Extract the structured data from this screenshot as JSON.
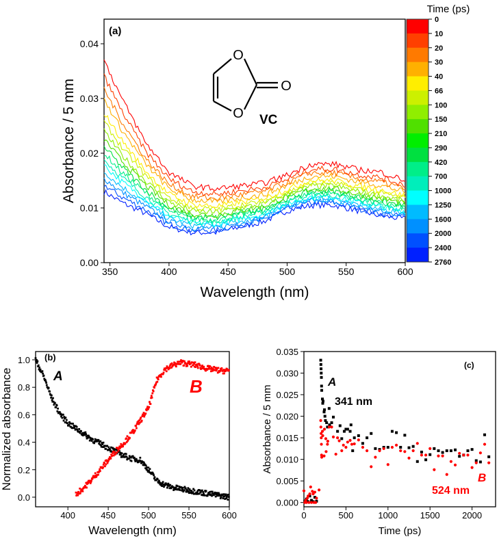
{
  "chart_data": [
    {
      "panel": "a",
      "type": "line",
      "label": "(a)",
      "xlabel": "Wavelength (nm)",
      "ylabel": "Absorbance / 5 mm",
      "xlim": [
        345,
        600
      ],
      "ylim": [
        0,
        0.0445
      ],
      "xticks": [
        350,
        400,
        450,
        500,
        550,
        600
      ],
      "yticks": [
        0.0,
        0.01,
        0.02,
        0.03,
        0.04
      ],
      "ytick_labels": [
        "0.00",
        "0.01",
        "0.02",
        "0.03",
        "0.04"
      ],
      "molecule": {
        "name": "VC",
        "atoms": [
          "O",
          "O",
          "O"
        ]
      },
      "colorbar": {
        "title": "Time (ps)",
        "labels": [
          "0",
          "10",
          "20",
          "30",
          "40",
          "66",
          "100",
          "150",
          "210",
          "290",
          "420",
          "700",
          "1000",
          "1250",
          "1600",
          "2000",
          "2400",
          "2760"
        ],
        "colors": [
          "#ff0000",
          "#ff4000",
          "#ff7a00",
          "#ffb000",
          "#ffee00",
          "#ccf000",
          "#90ee00",
          "#50e000",
          "#00ee00",
          "#00e040",
          "#00ee88",
          "#00eebb",
          "#00ffff",
          "#00bbff",
          "#0090ff",
          "#0050ff",
          "#0020ff"
        ]
      },
      "x": [
        345,
        360,
        380,
        400,
        420,
        440,
        460,
        480,
        500,
        520,
        540,
        560,
        580,
        600
      ],
      "series": [
        {
          "name": "0 ps",
          "values": [
            0.037,
            0.03,
            0.022,
            0.0165,
            0.014,
            0.0135,
            0.014,
            0.0145,
            0.016,
            0.018,
            0.018,
            0.017,
            0.0165,
            0.015
          ]
        },
        {
          "name": "10 ps",
          "values": [
            0.0341,
            0.0277,
            0.0204,
            0.0153,
            0.013,
            0.0125,
            0.0131,
            0.0137,
            0.0152,
            0.0171,
            0.0171,
            0.0161,
            0.0155,
            0.0142
          ]
        },
        {
          "name": "20 ps",
          "values": [
            0.0317,
            0.0258,
            0.0191,
            0.0143,
            0.0121,
            0.0117,
            0.0124,
            0.013,
            0.0146,
            0.0164,
            0.0164,
            0.0154,
            0.0147,
            0.0135
          ]
        },
        {
          "name": "30 ps",
          "values": [
            0.0298,
            0.0243,
            0.0181,
            0.0135,
            0.0115,
            0.0111,
            0.0118,
            0.0124,
            0.0141,
            0.0158,
            0.0158,
            0.0148,
            0.0141,
            0.0129
          ]
        },
        {
          "name": "40 ps",
          "values": [
            0.0274,
            0.0224,
            0.0168,
            0.0125,
            0.0106,
            0.0103,
            0.011,
            0.0117,
            0.0134,
            0.015,
            0.015,
            0.014,
            0.0133,
            0.0122
          ]
        },
        {
          "name": "66 ps",
          "values": [
            0.0257,
            0.0211,
            0.0159,
            0.0118,
            0.01,
            0.0097,
            0.0105,
            0.0112,
            0.0129,
            0.0145,
            0.0145,
            0.0135,
            0.0127,
            0.0117
          ]
        },
        {
          "name": "100 ps",
          "values": [
            0.024,
            0.0197,
            0.015,
            0.0111,
            0.0094,
            0.0092,
            0.01,
            0.0107,
            0.0125,
            0.014,
            0.014,
            0.013,
            0.0122,
            0.0112
          ]
        },
        {
          "name": "150 ps",
          "values": [
            0.0226,
            0.0186,
            0.0142,
            0.0105,
            0.0089,
            0.0087,
            0.0095,
            0.0103,
            0.0121,
            0.0135,
            0.0135,
            0.0125,
            0.0117,
            0.0108
          ]
        },
        {
          "name": "210 ps",
          "values": [
            0.0212,
            0.0175,
            0.0134,
            0.0099,
            0.0084,
            0.0082,
            0.0091,
            0.0099,
            0.0117,
            0.0131,
            0.0131,
            0.0121,
            0.0112,
            0.0104
          ]
        },
        {
          "name": "290 ps",
          "values": [
            0.02,
            0.0165,
            0.0128,
            0.0094,
            0.008,
            0.0078,
            0.0087,
            0.0095,
            0.0114,
            0.0127,
            0.0127,
            0.0117,
            0.0108,
            0.01
          ]
        },
        {
          "name": "420 ps",
          "values": [
            0.0188,
            0.0156,
            0.0121,
            0.0089,
            0.0075,
            0.0074,
            0.0083,
            0.0092,
            0.0111,
            0.0123,
            0.0123,
            0.0113,
            0.0104,
            0.0097
          ]
        },
        {
          "name": "700 ps",
          "values": [
            0.0178,
            0.0148,
            0.0116,
            0.0085,
            0.0072,
            0.0071,
            0.008,
            0.0089,
            0.0108,
            0.012,
            0.012,
            0.011,
            0.0101,
            0.0094
          ]
        },
        {
          "name": "1000 ps",
          "values": [
            0.0166,
            0.0139,
            0.011,
            0.008,
            0.0068,
            0.0067,
            0.0076,
            0.0085,
            0.0105,
            0.0116,
            0.0116,
            0.0106,
            0.0097,
            0.0091
          ]
        },
        {
          "name": "1250 ps",
          "values": [
            0.0154,
            0.0129,
            0.0103,
            0.0075,
            0.0064,
            0.0063,
            0.0073,
            0.0082,
            0.0102,
            0.0113,
            0.0113,
            0.0103,
            0.0093,
            0.0087
          ]
        },
        {
          "name": "1600 ps",
          "values": [
            0.0142,
            0.012,
            0.0097,
            0.007,
            0.0059,
            0.0059,
            0.0069,
            0.0078,
            0.0098,
            0.0109,
            0.0109,
            0.0099,
            0.0089,
            0.0084
          ]
        },
        {
          "name": "2760 ps",
          "values": [
            0.013,
            0.011,
            0.009,
            0.0065,
            0.0055,
            0.0055,
            0.0065,
            0.0075,
            0.0095,
            0.0105,
            0.0105,
            0.0095,
            0.0085,
            0.008
          ]
        }
      ]
    },
    {
      "panel": "b",
      "type": "scatter",
      "label": "(b)",
      "xlabel": "Wavelength (nm)",
      "ylabel": "Normalized absorbance",
      "xlim": [
        360,
        600
      ],
      "ylim": [
        -0.07,
        1.06
      ],
      "xticks": [
        400,
        450,
        500,
        550,
        600
      ],
      "yticks": [
        0.0,
        0.2,
        0.4,
        0.6,
        0.8,
        1.0
      ],
      "ytick_labels": [
        "0.0",
        "0.2",
        "0.4",
        "0.6",
        "0.8",
        "1.0"
      ],
      "series": [
        {
          "name": "A",
          "color": "#000000",
          "x": [
            360,
            370,
            380,
            390,
            400,
            410,
            420,
            430,
            440,
            450,
            460,
            470,
            480,
            490,
            500,
            510,
            520,
            530,
            540,
            550,
            560,
            570,
            580,
            590,
            600
          ],
          "values": [
            1.0,
            0.88,
            0.72,
            0.61,
            0.54,
            0.5,
            0.46,
            0.42,
            0.39,
            0.36,
            0.33,
            0.3,
            0.28,
            0.27,
            0.2,
            0.12,
            0.09,
            0.07,
            0.06,
            0.05,
            0.04,
            0.03,
            0.02,
            0.01,
            0.0
          ]
        },
        {
          "name": "B",
          "color": "#ff0000",
          "x": [
            410,
            420,
            430,
            440,
            450,
            460,
            470,
            480,
            490,
            500,
            505,
            510,
            520,
            530,
            540,
            550,
            560,
            570,
            580,
            590,
            600
          ],
          "values": [
            0.02,
            0.07,
            0.13,
            0.2,
            0.27,
            0.34,
            0.4,
            0.47,
            0.56,
            0.65,
            0.75,
            0.85,
            0.93,
            0.96,
            0.98,
            0.97,
            0.96,
            0.94,
            0.93,
            0.92,
            0.92
          ]
        }
      ]
    },
    {
      "panel": "c",
      "type": "scatter",
      "label": "(c)",
      "xlabel": "Time (ps)",
      "ylabel": "Absorbance / 5 mm",
      "xlim": [
        0,
        2280
      ],
      "ylim": [
        -0.001,
        0.035
      ],
      "xticks": [
        0,
        500,
        1000,
        1500,
        2000
      ],
      "yticks": [
        0.0,
        0.005,
        0.01,
        0.015,
        0.02,
        0.025,
        0.03,
        0.035
      ],
      "ytick_labels": [
        "0.000",
        "0.005",
        "0.010",
        "0.015",
        "0.020",
        "0.025",
        "0.030",
        "0.035"
      ],
      "annotations": {
        "a_letter": "A",
        "a_wavelength": "341 nm",
        "b_letter": "B",
        "b_wavelength": "524 nm"
      },
      "series": [
        {
          "name": "341 nm",
          "color": "#000000",
          "x": [
            10,
            30,
            50,
            70,
            90,
            110,
            130,
            150,
            200,
            202,
            204,
            206,
            208,
            210,
            212,
            220,
            224,
            228,
            240,
            244,
            250,
            256,
            270,
            280,
            300,
            305,
            330,
            350,
            400,
            430,
            450,
            480,
            500,
            520,
            550,
            560,
            580,
            600,
            650,
            700,
            750,
            800,
            850,
            900,
            950,
            1000,
            1050,
            1100,
            1150,
            1200,
            1250,
            1300,
            1350,
            1400,
            1450,
            1500,
            1550,
            1600,
            1650,
            1700,
            1750,
            1800,
            1850,
            1900,
            1950,
            2000,
            2050,
            2100,
            2150,
            2200
          ],
          "values": [
            0.0003,
            0.0008,
            0.0002,
            0.0015,
            0.0005,
            0.0002,
            0.0012,
            0.0003,
            0.033,
            0.032,
            0.031,
            0.03,
            0.029,
            0.027,
            0.026,
            0.024,
            0.023,
            0.0235,
            0.021,
            0.0215,
            0.02,
            0.019,
            0.0185,
            0.0175,
            0.0218,
            0.018,
            0.0185,
            0.0198,
            0.0165,
            0.0178,
            0.0148,
            0.0165,
            0.017,
            0.017,
            0.0165,
            0.018,
            0.012,
            0.015,
            0.0155,
            0.0137,
            0.015,
            0.016,
            0.0125,
            0.0123,
            0.0128,
            0.0128,
            0.0165,
            0.0162,
            0.0128,
            0.0156,
            0.0127,
            0.013,
            0.0095,
            0.0117,
            0.0099,
            0.0111,
            0.0125,
            0.012,
            0.0116,
            0.012,
            0.012,
            0.0122,
            0.0107,
            0.011,
            0.012,
            0.0123,
            0.0097,
            0.0094,
            0.0157,
            0.0106
          ]
        },
        {
          "name": "524 nm",
          "color": "#ff0000",
          "x": [
            0,
            10,
            20,
            30,
            40,
            50,
            60,
            70,
            80,
            90,
            100,
            110,
            120,
            130,
            140,
            150,
            180,
            200,
            202,
            204,
            206,
            208,
            210,
            212,
            220,
            224,
            240,
            244,
            260,
            264,
            280,
            284,
            300,
            330,
            350,
            380,
            400,
            420,
            450,
            470,
            500,
            520,
            550,
            570,
            600,
            650,
            700,
            750,
            800,
            850,
            900,
            950,
            1000,
            1050,
            1100,
            1150,
            1200,
            1250,
            1300,
            1350,
            1400,
            1450,
            1500,
            1550,
            1600,
            1650,
            1700,
            1750,
            1800,
            1850,
            1900,
            1950,
            2000,
            2050,
            2100,
            2150,
            2200
          ],
          "values": [
            0.0027,
            0.0,
            0.0005,
            0.0,
            0.001,
            0.0015,
            0.0,
            0.002,
            0.0036,
            0.0,
            0.0026,
            0.002,
            0.0,
            0.0024,
            0.0,
            0.001,
            0.0029,
            0.019,
            0.0175,
            0.016,
            0.015,
            0.0135,
            0.011,
            0.0105,
            0.0165,
            0.0155,
            0.0108,
            0.017,
            0.0148,
            0.0118,
            0.0135,
            0.0142,
            0.0175,
            0.0175,
            0.0152,
            0.0112,
            0.015,
            0.0143,
            0.012,
            0.0133,
            0.0128,
            0.014,
            0.0144,
            0.0135,
            0.0136,
            0.0145,
            0.0128,
            0.012,
            0.0083,
            0.0105,
            0.012,
            0.0125,
            0.0088,
            0.0128,
            0.0133,
            0.012,
            0.0118,
            0.0103,
            0.012,
            0.0137,
            0.011,
            0.011,
            0.0125,
            0.0076,
            0.0108,
            0.0108,
            0.0065,
            0.0095,
            0.0087,
            0.0114,
            0.011,
            0.011,
            0.0081,
            0.0092,
            0.0115,
            0.0135,
            0.0092
          ]
        }
      ]
    }
  ]
}
